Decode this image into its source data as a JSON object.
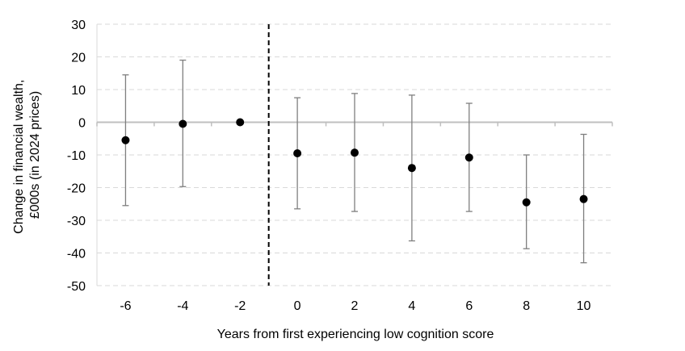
{
  "chart_data": {
    "type": "scatter",
    "xlabel": "Years from first experiencing low cognition score",
    "ylabel_lines": [
      "Change in financial wealth,",
      "£000s (in 2024 prices)"
    ],
    "ylim": [
      -50,
      30
    ],
    "yticks": [
      30,
      20,
      10,
      0,
      -10,
      -20,
      -30,
      -40,
      -50
    ],
    "categories": [
      "-6",
      "-4",
      "-2",
      "0",
      "2",
      "4",
      "6",
      "8",
      "10"
    ],
    "values": [
      -5.5,
      -0.5,
      0,
      -9.5,
      -9.3,
      -14,
      -10.8,
      -24.5,
      -23.5
    ],
    "ci_lower": [
      -25.5,
      -19.7,
      0,
      -26.5,
      -27.3,
      -36.3,
      -27.3,
      -38.7,
      -43
    ],
    "ci_upper": [
      14.5,
      19,
      0,
      7.5,
      8.8,
      8.3,
      5.8,
      -10,
      -3.7
    ],
    "reference_line_between": [
      "-2",
      "0"
    ],
    "grid": true,
    "colors": {
      "marker": "#000000",
      "errorbar": "#7f7f7f",
      "grid": "#d9d9d9",
      "zero_line": "#bfbfbf",
      "reference": "#000000"
    }
  }
}
